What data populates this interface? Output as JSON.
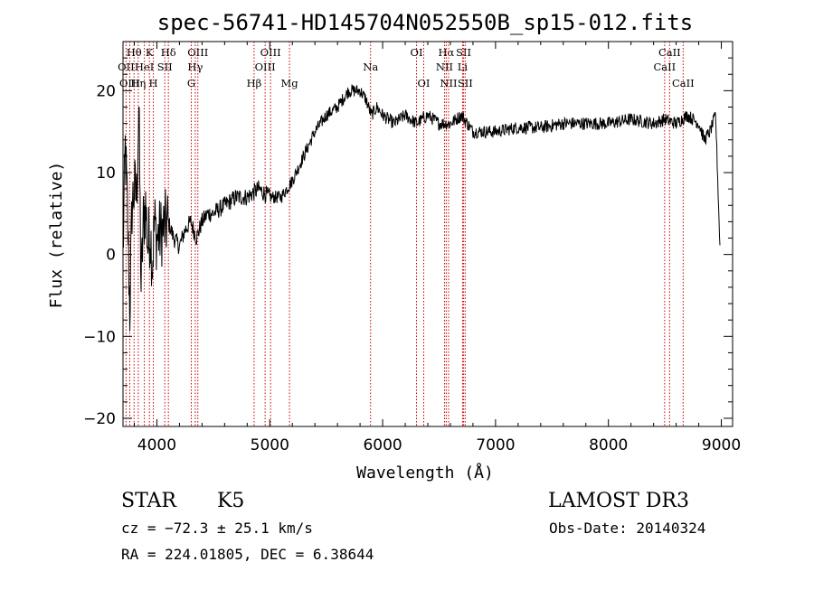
{
  "chart_data": {
    "type": "line",
    "title": "spec-56741-HD145704N052550B_sp15-012.fits",
    "xlabel": "Wavelength (Å)",
    "ylabel": "Flux (relative)",
    "xlim": [
      3700,
      9100
    ],
    "ylim": [
      -21,
      26
    ],
    "xticks": [
      4000,
      5000,
      6000,
      7000,
      8000,
      9000
    ],
    "yticks": [
      -20,
      -10,
      0,
      10,
      20
    ],
    "grid": false,
    "line_color": "#000000",
    "marker_line_color": "#cc0000",
    "series": [
      {
        "x": [
          3700,
          3720,
          3740,
          3760,
          3780,
          3800,
          3820,
          3840,
          3860,
          3880,
          3900,
          3920,
          3940,
          3960,
          3980,
          4000,
          4050,
          4100,
          4150,
          4200,
          4250,
          4300,
          4350,
          4400,
          4450,
          4500,
          4600,
          4700,
          4800,
          4900,
          5000,
          5100,
          5200,
          5300,
          5400,
          5500,
          5600,
          5700,
          5800,
          5850,
          5900,
          5950,
          6000,
          6100,
          6200,
          6300,
          6400,
          6500,
          6600,
          6700,
          6800,
          6900,
          7000,
          7200,
          7400,
          7600,
          7800,
          8000,
          8200,
          8400,
          8500,
          8600,
          8700,
          8800,
          8850,
          8900,
          8950,
          8990
        ],
        "y": [
          0,
          13,
          5,
          -7,
          6,
          8,
          7,
          18,
          -4,
          4,
          6,
          1,
          3,
          -1,
          4,
          2,
          3,
          4,
          2,
          1,
          3,
          4,
          2,
          4,
          5,
          5,
          6,
          7,
          7,
          8,
          7,
          7,
          9,
          12,
          15,
          17,
          18,
          20,
          20,
          19,
          17,
          18,
          17,
          16,
          17,
          16,
          17,
          16,
          16,
          17,
          15,
          15,
          15,
          15.5,
          15.5,
          16,
          16,
          16,
          16.5,
          16,
          16.5,
          16,
          17,
          16,
          14,
          15,
          17,
          0
        ]
      }
    ],
    "spectral_lines": [
      {
        "label": "Hθ",
        "wavelength": 3798,
        "row": 1
      },
      {
        "label": "OII",
        "wavelength": 3727,
        "row": 2
      },
      {
        "label": "OIII",
        "wavelength": 3760,
        "row": 3
      },
      {
        "label": "K",
        "wavelength": 3934,
        "row": 1
      },
      {
        "label": "HeI",
        "wavelength": 3889,
        "row": 2
      },
      {
        "label": "Hη",
        "wavelength": 3835,
        "row": 3
      },
      {
        "label": "Hδ",
        "wavelength": 4102,
        "row": 1
      },
      {
        "label": "SII",
        "wavelength": 4070,
        "row": 2
      },
      {
        "label": "H",
        "wavelength": 3969,
        "row": 3
      },
      {
        "label": "OIII",
        "wavelength": 4363,
        "row": 1
      },
      {
        "label": "Hγ",
        "wavelength": 4340,
        "row": 2
      },
      {
        "label": "G",
        "wavelength": 4305,
        "row": 3
      },
      {
        "label": "OIII",
        "wavelength": 5007,
        "row": 1
      },
      {
        "label": "OIII",
        "wavelength": 4959,
        "row": 2
      },
      {
        "label": "Hβ",
        "wavelength": 4861,
        "row": 3
      },
      {
        "label": "Mg",
        "wavelength": 5175,
        "row": 3
      },
      {
        "label": "Na",
        "wavelength": 5893,
        "row": 2
      },
      {
        "label": "OI",
        "wavelength": 6300,
        "row": 1
      },
      {
        "label": "OI",
        "wavelength": 6364,
        "row": 3
      },
      {
        "label": "Hα",
        "wavelength": 6563,
        "row": 1
      },
      {
        "label": "NII",
        "wavelength": 6548,
        "row": 2
      },
      {
        "label": "NII",
        "wavelength": 6584,
        "row": 3
      },
      {
        "label": "SII",
        "wavelength": 6717,
        "row": 1
      },
      {
        "label": "Li",
        "wavelength": 6708,
        "row": 2
      },
      {
        "label": "SII",
        "wavelength": 6731,
        "row": 3
      },
      {
        "label": "CaII",
        "wavelength": 8542,
        "row": 1
      },
      {
        "label": "CaII",
        "wavelength": 8498,
        "row": 2
      },
      {
        "label": "CaII",
        "wavelength": 8662,
        "row": 3
      }
    ]
  },
  "info": {
    "class_label": "STAR",
    "subclass_label": "K5",
    "redshift_text": "cz = −72.3 ± 25.1 km/s",
    "coords_text": "RA = 224.01805, DEC =   6.38644",
    "survey_label": "LAMOST DR3",
    "obs_date_text": "Obs-Date: 20140324"
  }
}
